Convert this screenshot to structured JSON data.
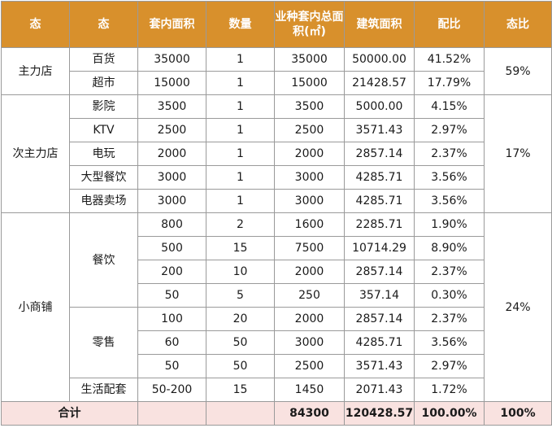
{
  "headers": [
    "态",
    "态",
    "套内面积",
    "数量",
    "业种套内总面积(㎡)",
    "建筑面积",
    "配比",
    "态比"
  ],
  "groups": {
    "main": "主力店",
    "secondary": "次主力店",
    "small": "小商铺"
  },
  "subgroups": {
    "dining": "餐饮",
    "retail": "零售"
  },
  "rows": [
    {
      "sub": "百货",
      "area": "35000",
      "qty": "1",
      "total": "35000",
      "build": "50000.00",
      "ratio": "41.52%"
    },
    {
      "sub": "超市",
      "area": "15000",
      "qty": "1",
      "total": "15000",
      "build": "21428.57",
      "ratio": "17.79%"
    },
    {
      "sub": "影院",
      "area": "3500",
      "qty": "1",
      "total": "3500",
      "build": "5000.00",
      "ratio": "4.15%"
    },
    {
      "sub": "KTV",
      "area": "2500",
      "qty": "1",
      "total": "2500",
      "build": "3571.43",
      "ratio": "2.97%"
    },
    {
      "sub": "电玩",
      "area": "2000",
      "qty": "1",
      "total": "2000",
      "build": "2857.14",
      "ratio": "2.37%"
    },
    {
      "sub": "大型餐饮",
      "area": "3000",
      "qty": "1",
      "total": "3000",
      "build": "4285.71",
      "ratio": "3.56%"
    },
    {
      "sub": "电器卖场",
      "area": "3000",
      "qty": "1",
      "total": "3000",
      "build": "4285.71",
      "ratio": "3.56%"
    },
    {
      "sub": "",
      "area": "800",
      "qty": "2",
      "total": "1600",
      "build": "2285.71",
      "ratio": "1.90%"
    },
    {
      "sub": "",
      "area": "500",
      "qty": "15",
      "total": "7500",
      "build": "10714.29",
      "ratio": "8.90%"
    },
    {
      "sub": "",
      "area": "200",
      "qty": "10",
      "total": "2000",
      "build": "2857.14",
      "ratio": "2.37%"
    },
    {
      "sub": "",
      "area": "50",
      "qty": "5",
      "total": "250",
      "build": "357.14",
      "ratio": "0.30%"
    },
    {
      "sub": "",
      "area": "100",
      "qty": "20",
      "total": "2000",
      "build": "2857.14",
      "ratio": "2.37%"
    },
    {
      "sub": "",
      "area": "60",
      "qty": "50",
      "total": "3000",
      "build": "4285.71",
      "ratio": "3.56%"
    },
    {
      "sub": "",
      "area": "50",
      "qty": "50",
      "total": "2500",
      "build": "3571.43",
      "ratio": "2.97%"
    },
    {
      "sub": "生活配套",
      "area": "50-200",
      "qty": "15",
      "total": "1450",
      "build": "2071.43",
      "ratio": "1.72%"
    }
  ],
  "group_ratios": {
    "main": "59%",
    "secondary": "17%",
    "small": "24%"
  },
  "total": {
    "label": "合计",
    "total": "84300",
    "build": "120428.57",
    "ratio": "100.00%",
    "group_ratio": "100%"
  },
  "colors": {
    "header_bg": "#d8902c",
    "total_bg": "#f9e2e0"
  }
}
